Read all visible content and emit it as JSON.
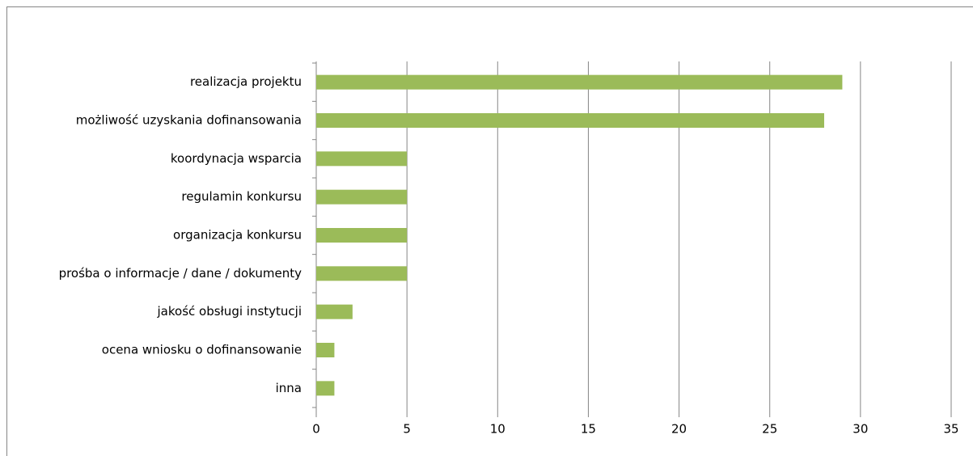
{
  "chart_data": {
    "type": "bar",
    "orientation": "horizontal",
    "categories": [
      "realizacja projektu",
      "możliwość uzyskania dofinansowania",
      "koordynacja wsparcia",
      "regulamin konkursu",
      "organizacja konkursu",
      "prośba o informacje / dane / dokumenty",
      "jakość obsługi instytucji",
      "ocena wniosku o dofinansowanie",
      "inna"
    ],
    "values": [
      29,
      28,
      5,
      5,
      5,
      5,
      2,
      1,
      1
    ],
    "color": "#9bbb59",
    "xlim": [
      0,
      35
    ],
    "xticks": [
      0,
      5,
      10,
      15,
      20,
      25,
      30,
      35
    ],
    "grid": true
  }
}
